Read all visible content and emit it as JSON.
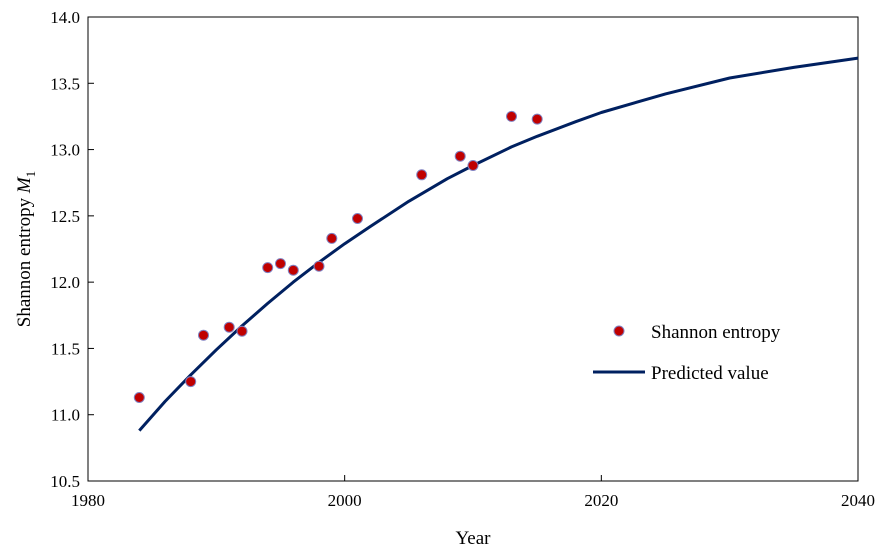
{
  "chart_data": {
    "type": "scatter",
    "title": "",
    "xlabel": "Year",
    "ylabel_text": "Shannon entropy ",
    "ylabel_symbol": "M",
    "ylabel_subscript": "1",
    "xlim": [
      1980,
      2040
    ],
    "ylim": [
      10.5,
      14.0
    ],
    "x_ticks": [
      1980,
      2000,
      2020,
      2040
    ],
    "y_ticks": [
      10.5,
      11.0,
      11.5,
      12.0,
      12.5,
      13.0,
      13.5,
      14.0
    ],
    "x_tick_labels": [
      "1980",
      "2000",
      "2020",
      "2040"
    ],
    "y_tick_labels": [
      "10.5",
      "11.0",
      "11.5",
      "12.0",
      "12.5",
      "13.0",
      "13.5",
      "14.0"
    ],
    "grid": false,
    "legend_position": "right",
    "series": [
      {
        "name": "Shannon entropy",
        "kind": "scatter",
        "color": "#c00000",
        "edge_color": "#8080c0",
        "x": [
          1984,
          1988,
          1989,
          1991,
          1992,
          1994,
          1995,
          1996,
          1998,
          1999,
          2001,
          2006,
          2009,
          2010,
          2013,
          2015
        ],
        "y": [
          11.13,
          11.25,
          11.6,
          11.66,
          11.63,
          12.11,
          12.14,
          12.09,
          12.12,
          12.33,
          12.48,
          12.81,
          12.95,
          12.88,
          13.25,
          13.23
        ]
      },
      {
        "name": "Predicted value",
        "kind": "line",
        "color": "#002060",
        "x": [
          1984,
          1986,
          1988,
          1990,
          1992,
          1994,
          1996,
          1998,
          2000,
          2002,
          2005,
          2008,
          2010,
          2013,
          2015,
          2018,
          2020,
          2025,
          2030,
          2035,
          2040
        ],
        "y": [
          10.88,
          11.1,
          11.3,
          11.49,
          11.67,
          11.84,
          12.0,
          12.15,
          12.29,
          12.42,
          12.61,
          12.78,
          12.88,
          13.02,
          13.1,
          13.21,
          13.28,
          13.42,
          13.54,
          13.62,
          13.69
        ]
      }
    ]
  }
}
